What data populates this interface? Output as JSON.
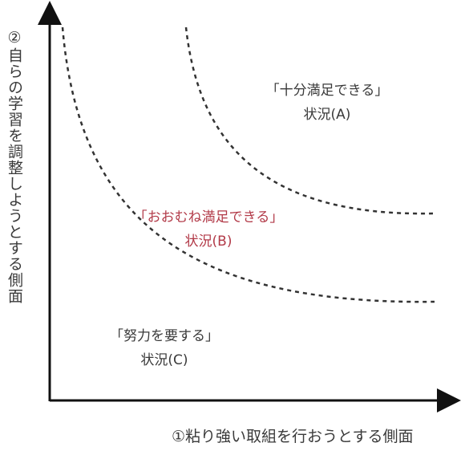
{
  "axes": {
    "y_label": "②自らの学習を調整しようとする側面",
    "x_label": "①粘り強い取組を行おうとする側面"
  },
  "regions": {
    "a": {
      "line1": "「十分満足できる」",
      "line2": "状況(A)"
    },
    "b": {
      "line1": "「おおむね満足できる」",
      "line2": "状況(B)"
    },
    "c": {
      "line1": "「努力を要する」",
      "line2": "状況(C)"
    }
  },
  "colors": {
    "axis": "#111111",
    "curve": "#333333",
    "text": "#3a3a3a",
    "highlight": "#b23a48"
  }
}
